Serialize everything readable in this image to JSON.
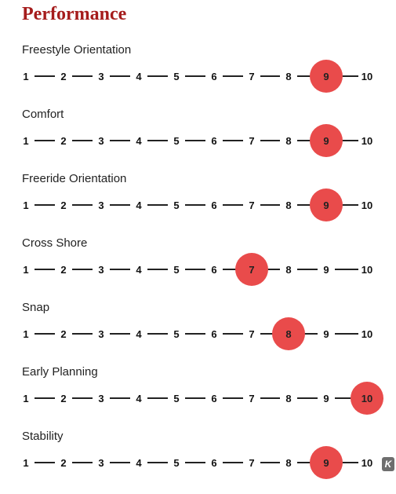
{
  "title": "Performance",
  "scale_labels": [
    "1",
    "2",
    "3",
    "4",
    "5",
    "6",
    "7",
    "8",
    "9",
    "10"
  ],
  "colors": {
    "title": "#a51c1c",
    "selected_marker": "#e94b4b"
  },
  "ratings": [
    {
      "label": "Freestyle Orientation",
      "value": 9
    },
    {
      "label": "Comfort",
      "value": 9
    },
    {
      "label": "Freeride Orientation",
      "value": 9
    },
    {
      "label": "Cross Shore",
      "value": 7
    },
    {
      "label": "Snap",
      "value": 8
    },
    {
      "label": "Early Planning",
      "value": 10
    },
    {
      "label": "Stability",
      "value": 9
    }
  ],
  "corner_badge": {
    "text": "K",
    "icon": "k-logo-icon"
  }
}
